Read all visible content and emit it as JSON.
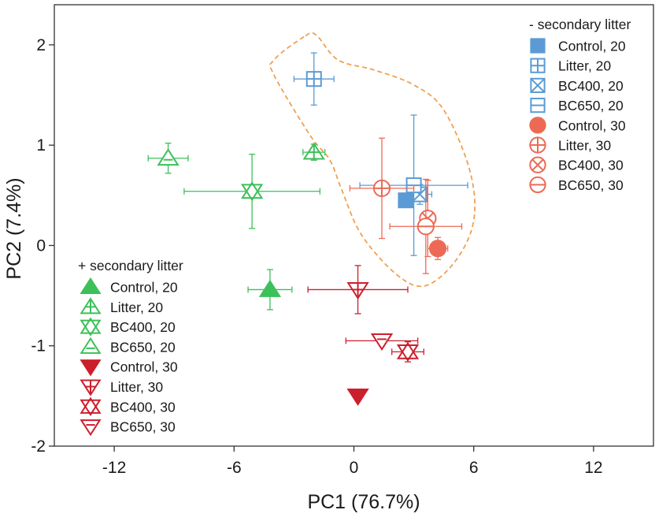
{
  "chart_data": {
    "type": "scatter",
    "title": "",
    "xlabel": "PC1 (76.7%)",
    "ylabel": "PC2 (7.4%)",
    "xlim": [
      -15,
      15
    ],
    "ylim": [
      -2,
      2.4
    ],
    "xticks": [
      -12,
      -6,
      0,
      6,
      12
    ],
    "xtick_labels": [
      "-12",
      "-6",
      "0",
      "6",
      "12"
    ],
    "yticks": [
      -2,
      -1,
      0,
      1,
      2
    ],
    "ytick_labels": [
      "-2",
      "-1",
      "0",
      "1",
      "2"
    ],
    "grid": false,
    "legends": [
      {
        "title": "- secondary litter",
        "placement": "top-right",
        "entries": [
          {
            "label": "Control, 20",
            "series": 0
          },
          {
            "label": "Litter, 20",
            "series": 1
          },
          {
            "label": "BC400, 20",
            "series": 2
          },
          {
            "label": "BC650, 20",
            "series": 3
          },
          {
            "label": "Control, 30",
            "series": 4
          },
          {
            "label": "Litter, 30",
            "series": 5
          },
          {
            "label": "BC400, 30",
            "series": 6
          },
          {
            "label": "BC650, 30",
            "series": 7
          }
        ]
      },
      {
        "title": "+ secondary litter",
        "placement": "bottom-left",
        "entries": [
          {
            "label": "Control, 20",
            "series": 8
          },
          {
            "label": "Litter, 20",
            "series": 9
          },
          {
            "label": "BC400, 20",
            "series": 10
          },
          {
            "label": "BC650, 20",
            "series": 11
          },
          {
            "label": "Control, 30",
            "series": 12
          },
          {
            "label": "Litter, 30",
            "series": 13
          },
          {
            "label": "BC400, 30",
            "series": 14
          },
          {
            "label": "BC650, 30",
            "series": 15
          }
        ]
      }
    ],
    "colors": {
      "blue": "#5b9bd5",
      "salmon": "#ec6a55",
      "green": "#3cc05a",
      "red": "#cc1f2d",
      "hull": "#f0a050"
    },
    "series": [
      {
        "group": "- secondary litter",
        "name": "Control, 20",
        "marker": "square-filled",
        "color": "#5b9bd5",
        "x": 2.6,
        "y": 0.45,
        "xerr": 0.3,
        "yerr": 0.05
      },
      {
        "group": "- secondary litter",
        "name": "Litter, 20",
        "marker": "square-plus",
        "color": "#5b9bd5",
        "x": -2.0,
        "y": 1.66,
        "xerr": 1.0,
        "yerr": 0.26
      },
      {
        "group": "- secondary litter",
        "name": "BC400, 20",
        "marker": "square-x",
        "color": "#5b9bd5",
        "x": 3.3,
        "y": 0.51,
        "xerr": 0.6,
        "yerr": 0.1
      },
      {
        "group": "- secondary litter",
        "name": "BC650, 20",
        "marker": "square-minus",
        "color": "#5b9bd5",
        "x": 3.0,
        "y": 0.6,
        "xerr": 2.7,
        "yerr": 0.7
      },
      {
        "group": "- secondary litter",
        "name": "Control, 30",
        "marker": "circle-filled",
        "color": "#ec6a55",
        "x": 4.2,
        "y": -0.03,
        "xerr": 0.5,
        "yerr": 0.11
      },
      {
        "group": "- secondary litter",
        "name": "Litter, 30",
        "marker": "circle-plus",
        "color": "#ec6a55",
        "x": 1.4,
        "y": 0.57,
        "xerr": 1.6,
        "yerr": 0.5
      },
      {
        "group": "- secondary litter",
        "name": "BC400, 30",
        "marker": "circle-x",
        "color": "#ec6a55",
        "x": 3.7,
        "y": 0.27,
        "xerr": 0.25,
        "yerr": 0.38
      },
      {
        "group": "- secondary litter",
        "name": "BC650, 30",
        "marker": "circle-minus",
        "color": "#ec6a55",
        "x": 3.6,
        "y": 0.19,
        "xerr": 1.8,
        "yerr": 0.47
      },
      {
        "group": "+ secondary litter",
        "name": "Control, 20",
        "marker": "triangle-up-filled",
        "color": "#3cc05a",
        "x": -4.2,
        "y": -0.44,
        "xerr": 1.1,
        "yerr": 0.2
      },
      {
        "group": "+ secondary litter",
        "name": "Litter, 20",
        "marker": "triangle-up-plus",
        "color": "#3cc05a",
        "x": -2.0,
        "y": 0.93,
        "xerr": 0.55,
        "yerr": 0.08
      },
      {
        "group": "+ secondary litter",
        "name": "BC400, 20",
        "marker": "triangle-up-x",
        "color": "#3cc05a",
        "x": -5.1,
        "y": 0.54,
        "xerr": 3.4,
        "yerr": 0.37
      },
      {
        "group": "+ secondary litter",
        "name": "BC650, 20",
        "marker": "triangle-up-minus",
        "color": "#3cc05a",
        "x": -9.3,
        "y": 0.87,
        "xerr": 1.0,
        "yerr": 0.15
      },
      {
        "group": "+ secondary litter",
        "name": "Control, 30",
        "marker": "triangle-down-filled",
        "color": "#cc1f2d",
        "x": 0.2,
        "y": -1.5,
        "xerr": 0.15,
        "yerr": 0.05
      },
      {
        "group": "+ secondary litter",
        "name": "Litter, 30",
        "marker": "triangle-down-plus",
        "color": "#cc1f2d",
        "x": 0.2,
        "y": -0.44,
        "xerr": 2.5,
        "yerr": 0.24
      },
      {
        "group": "+ secondary litter",
        "name": "BC400, 30",
        "marker": "triangle-down-x",
        "color": "#cc1f2d",
        "x": 2.7,
        "y": -1.06,
        "xerr": 0.8,
        "yerr": 0.1
      },
      {
        "group": "+ secondary litter",
        "name": "BC650, 30",
        "marker": "triangle-down-minus",
        "color": "#cc1f2d",
        "x": 1.4,
        "y": -0.95,
        "xerr": 1.8,
        "yerr": 0.05
      }
    ],
    "hull": {
      "style": "dashed",
      "color": "#f0a050",
      "points": [
        [
          -2.5,
          2.08
        ],
        [
          -4.0,
          1.85
        ],
        [
          -4.0,
          1.7
        ],
        [
          -2.2,
          1.1
        ],
        [
          -1.2,
          0.85
        ],
        [
          -0.6,
          0.55
        ],
        [
          0.4,
          0.1
        ],
        [
          2.2,
          -0.3
        ],
        [
          3.6,
          -0.4
        ],
        [
          5.1,
          -0.15
        ],
        [
          6.0,
          0.25
        ],
        [
          5.8,
          0.75
        ],
        [
          4.5,
          1.35
        ],
        [
          3.0,
          1.6
        ],
        [
          1.0,
          1.75
        ],
        [
          -0.8,
          1.85
        ],
        [
          -1.9,
          2.1
        ]
      ]
    }
  }
}
